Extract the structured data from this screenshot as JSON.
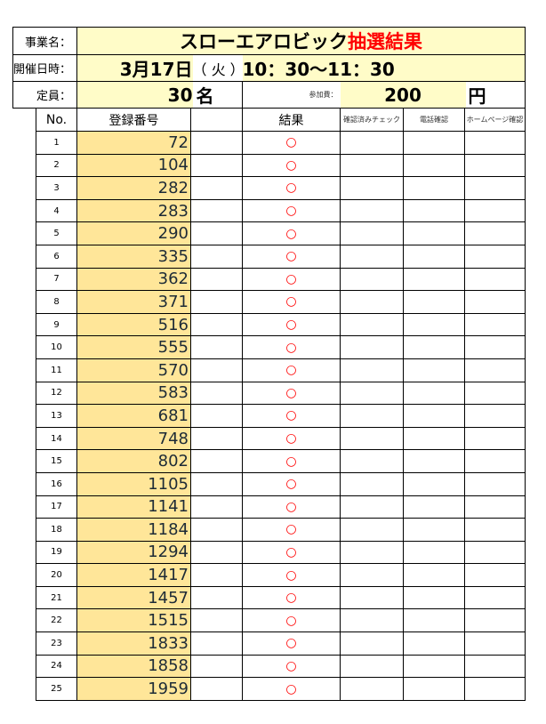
{
  "header": {
    "event_label": "事業名：",
    "title_main": "スローエアロビック",
    "title_red": "抽選結果",
    "datetime_label": "開催日時：",
    "date": "3月17日",
    "weekday": "（ 火 ）",
    "time": "10：30〜11：30",
    "capacity_label": "定員：",
    "capacity": "30",
    "capacity_unit": "名",
    "fee_label": "参加費：",
    "fee": "200",
    "fee_unit": "円"
  },
  "table": {
    "columns": [
      "No.",
      "登録番号",
      "",
      "結果",
      "確認済みチェック",
      "電話確認",
      "ホームページ確認"
    ],
    "rows": [
      {
        "no": "1",
        "reg": "72",
        "result": "○"
      },
      {
        "no": "2",
        "reg": "104",
        "result": "○"
      },
      {
        "no": "3",
        "reg": "282",
        "result": "○"
      },
      {
        "no": "4",
        "reg": "283",
        "result": "○"
      },
      {
        "no": "5",
        "reg": "290",
        "result": "○"
      },
      {
        "no": "6",
        "reg": "335",
        "result": "○"
      },
      {
        "no": "7",
        "reg": "362",
        "result": "○"
      },
      {
        "no": "8",
        "reg": "371",
        "result": "○"
      },
      {
        "no": "9",
        "reg": "516",
        "result": "○"
      },
      {
        "no": "10",
        "reg": "555",
        "result": "○"
      },
      {
        "no": "11",
        "reg": "570",
        "result": "○"
      },
      {
        "no": "12",
        "reg": "583",
        "result": "○"
      },
      {
        "no": "13",
        "reg": "681",
        "result": "○"
      },
      {
        "no": "14",
        "reg": "748",
        "result": "○"
      },
      {
        "no": "15",
        "reg": "802",
        "result": "○"
      },
      {
        "no": "16",
        "reg": "1105",
        "result": "○"
      },
      {
        "no": "17",
        "reg": "1141",
        "result": "○"
      },
      {
        "no": "18",
        "reg": "1184",
        "result": "○"
      },
      {
        "no": "19",
        "reg": "1294",
        "result": "○"
      },
      {
        "no": "20",
        "reg": "1417",
        "result": "○"
      },
      {
        "no": "21",
        "reg": "1457",
        "result": "○"
      },
      {
        "no": "22",
        "reg": "1515",
        "result": "○"
      },
      {
        "no": "23",
        "reg": "1833",
        "result": "○"
      },
      {
        "no": "24",
        "reg": "1858",
        "result": "○"
      },
      {
        "no": "25",
        "reg": "1959",
        "result": "○"
      }
    ]
  },
  "colors": {
    "highlight": "#ffe699",
    "header_fill": "#fffcc8",
    "accent": "#ff0000"
  }
}
